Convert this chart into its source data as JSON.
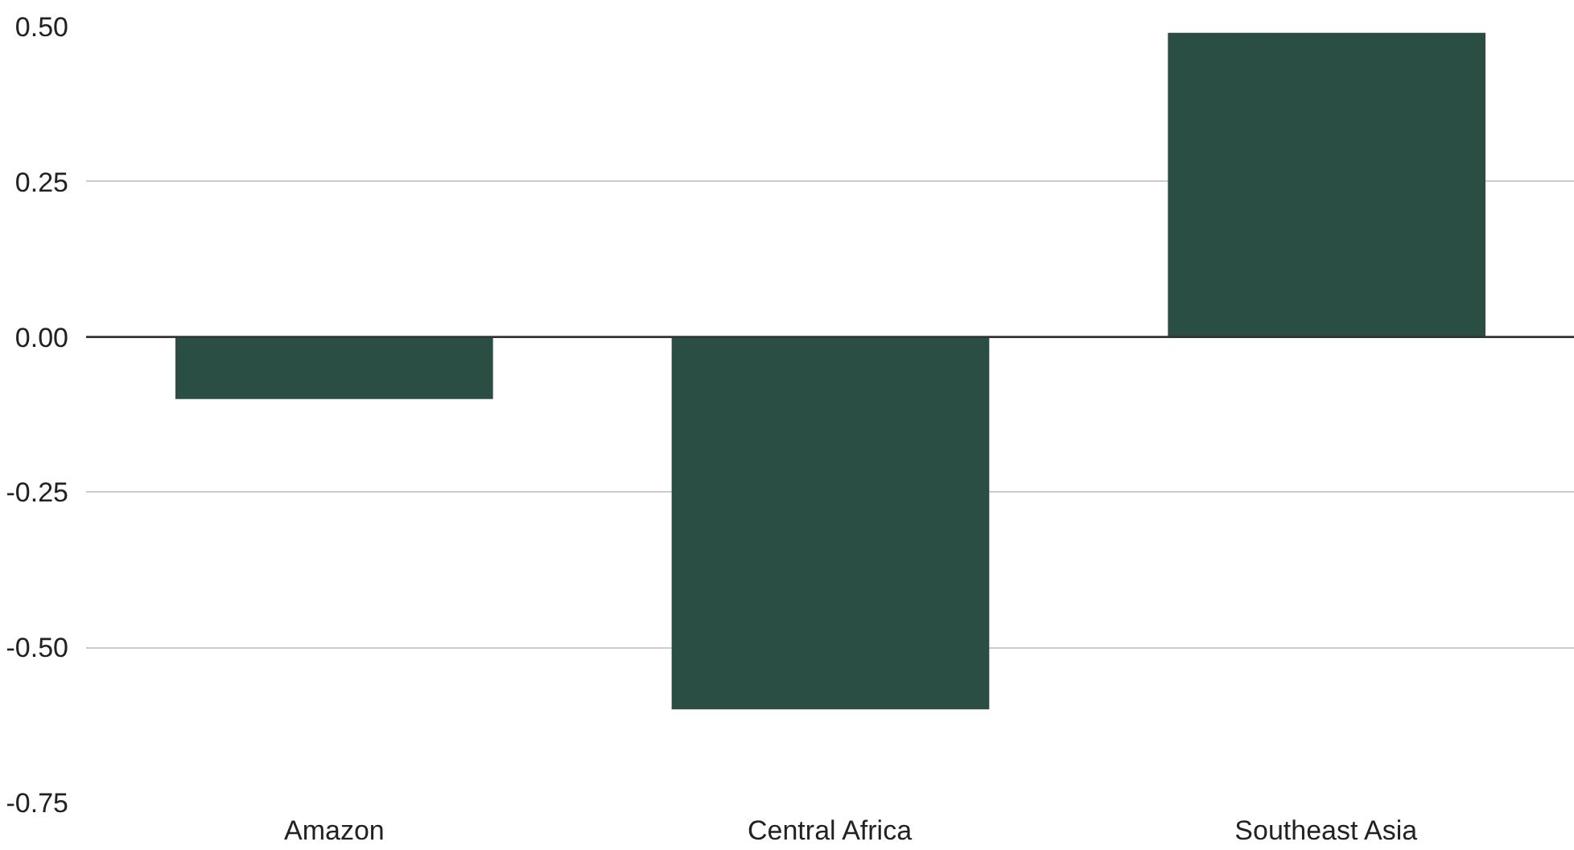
{
  "chart_data": {
    "type": "bar",
    "categories": [
      "Amazon",
      "Central Africa",
      "Southeast Asia"
    ],
    "values": [
      -0.1,
      -0.6,
      0.49
    ],
    "color": "#2a4e43",
    "ylim": [
      -0.75,
      0.5
    ],
    "yticks": [
      {
        "value": -0.75,
        "label": "-0.75"
      },
      {
        "value": -0.5,
        "label": "-0.50"
      },
      {
        "value": -0.25,
        "label": "-0.25"
      },
      {
        "value": 0,
        "label": "0.00"
      },
      {
        "value": 0.25,
        "label": "0.25"
      },
      {
        "value": 0.5,
        "label": "0.50"
      }
    ],
    "grid": "y"
  }
}
